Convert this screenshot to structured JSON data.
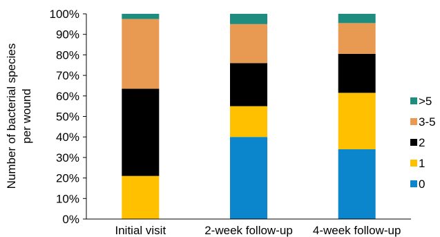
{
  "chart_data": {
    "type": "bar",
    "stacked": true,
    "percent": true,
    "categories": [
      "Initial visit",
      "2-week follow-up",
      "4-week follow-up"
    ],
    "ylabel": [
      "Number of bacterial species",
      "per wound"
    ],
    "ylim": [
      0,
      100
    ],
    "yticks": [
      "0%",
      "10%",
      "20%",
      "30%",
      "40%",
      "50%",
      "60%",
      "70%",
      "80%",
      "90%",
      "100%"
    ],
    "grid": false,
    "legend_position": "right",
    "series": [
      {
        "name": "0",
        "color": "#0B85CC",
        "values": [
          0,
          40,
          34
        ]
      },
      {
        "name": "1",
        "color": "#FFC000",
        "values": [
          21,
          15,
          27.5
        ]
      },
      {
        "name": "2",
        "color": "#000000",
        "values": [
          42.5,
          21,
          19
        ]
      },
      {
        "name": "3-5",
        "color": "#E89A52",
        "values": [
          34,
          19,
          15
        ]
      },
      {
        "name": ">5",
        "color": "#1E8C7E",
        "values": [
          2.5,
          5,
          4.5
        ]
      }
    ]
  }
}
